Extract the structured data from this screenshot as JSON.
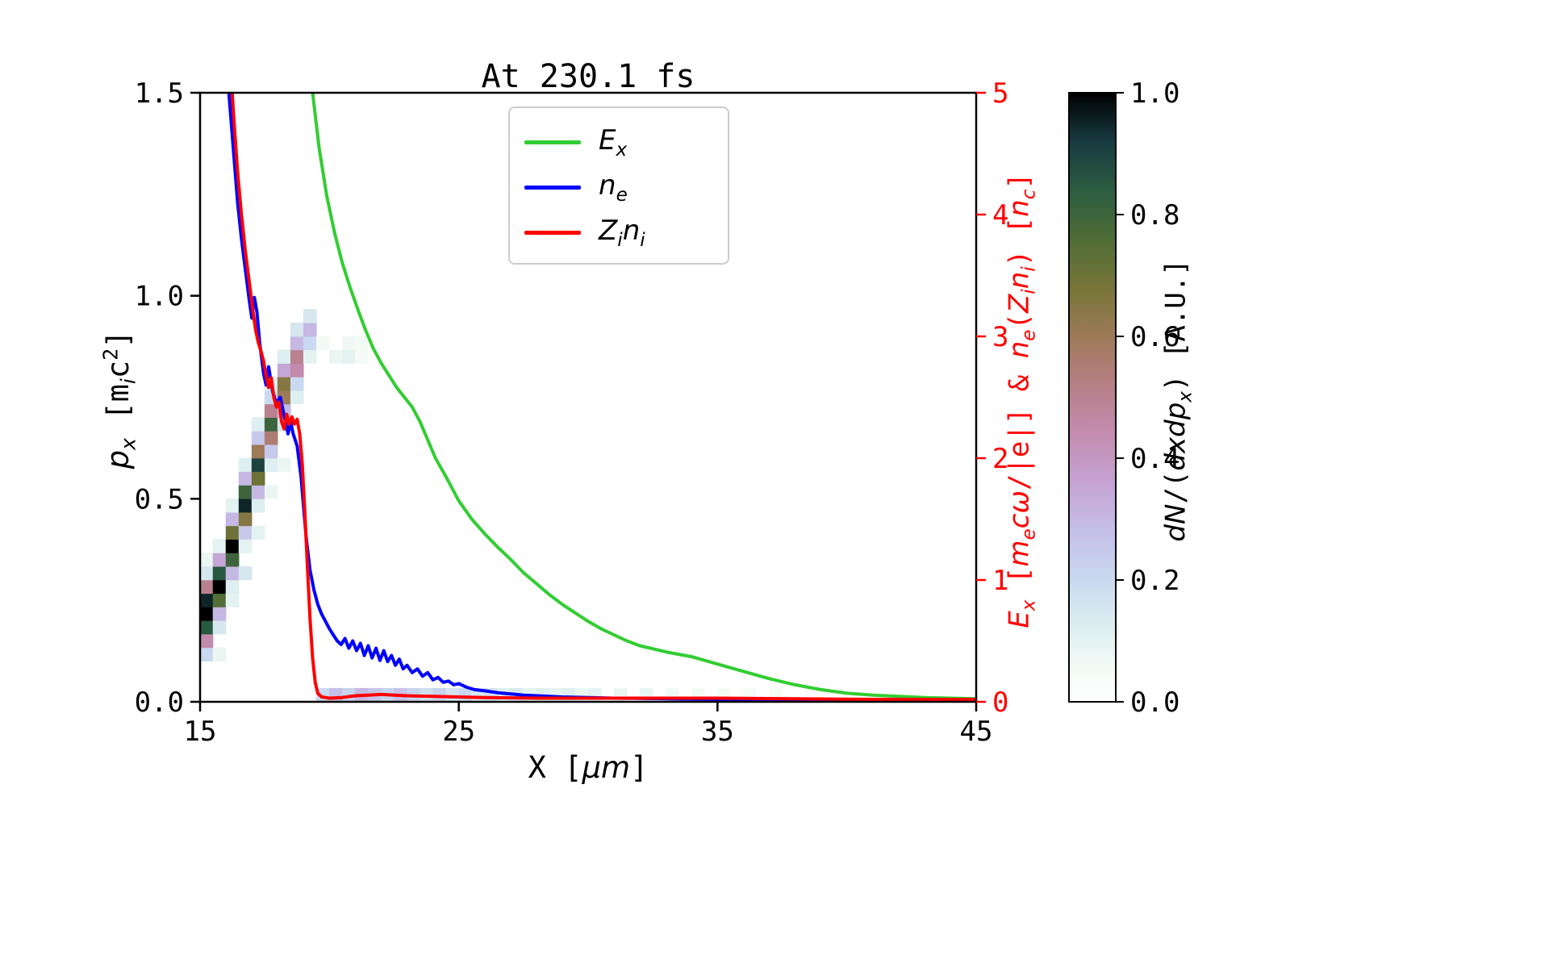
{
  "title": "At 230.1 fs",
  "chart_data": {
    "type": "line+heatmap",
    "title": "At 230.1 fs",
    "xlabel": "X [um]",
    "ylabel_left": "p_x [m_i c^2]",
    "ylabel_right": "E_x [m_e c w/|e|] & n_e(Z_i n_i) [n_c]",
    "colorbar_label": "dN/(dx dp_x) [A.U.]",
    "xlim": [
      15,
      45
    ],
    "ylim_left": [
      0,
      1.5
    ],
    "ylim_right": [
      0,
      5
    ],
    "x_ticks": [
      "15",
      "25",
      "35",
      "45"
    ],
    "y_ticks_left": [
      "0.0",
      "0.5",
      "1.0",
      "1.5"
    ],
    "y_ticks_right": [
      "0",
      "1",
      "2",
      "3",
      "4",
      "5"
    ],
    "colorbar_ticks": [
      "0.0",
      "0.2",
      "0.4",
      "0.6",
      "0.8",
      "1.0"
    ],
    "axis_color_right": "#ff0000",
    "legend_position": "upper center",
    "grid": false,
    "series": [
      {
        "name": "E_x",
        "color": "#32cd32",
        "axis": "right",
        "x": [
          19.0,
          19.35,
          19.6,
          19.9,
          20.2,
          20.5,
          20.8,
          21.1,
          21.4,
          21.7,
          22.0,
          22.3,
          22.6,
          22.9,
          23.2,
          23.5,
          23.8,
          24.1,
          24.5,
          25.0,
          25.5,
          26.0,
          26.5,
          27.0,
          27.5,
          28.0,
          28.5,
          29.0,
          29.5,
          30.0,
          30.5,
          31.0,
          31.5,
          32.0,
          33.0,
          34.0,
          35.0,
          36.0,
          37.0,
          38.0,
          39.0,
          40.0,
          41.0,
          42.0,
          43.0,
          44.0,
          45.0
        ],
        "y": [
          5.6,
          5.0,
          4.55,
          4.15,
          3.85,
          3.6,
          3.4,
          3.22,
          3.05,
          2.9,
          2.78,
          2.68,
          2.58,
          2.5,
          2.42,
          2.3,
          2.15,
          2.0,
          1.85,
          1.65,
          1.5,
          1.38,
          1.27,
          1.17,
          1.06,
          0.97,
          0.88,
          0.8,
          0.73,
          0.66,
          0.6,
          0.55,
          0.5,
          0.46,
          0.41,
          0.37,
          0.31,
          0.25,
          0.19,
          0.14,
          0.1,
          0.07,
          0.055,
          0.045,
          0.035,
          0.03,
          0.025
        ]
      },
      {
        "name": "n_e",
        "color": "#0000ff",
        "axis": "right",
        "x": [
          16.0,
          16.15,
          16.3,
          16.45,
          16.6,
          16.75,
          16.9,
          17.0,
          17.1,
          17.2,
          17.3,
          17.45,
          17.55,
          17.65,
          17.8,
          17.95,
          18.1,
          18.25,
          18.4,
          18.5,
          18.6,
          18.75,
          18.9,
          19.0,
          19.1,
          19.25,
          19.4,
          19.55,
          19.7,
          19.85,
          20.0,
          20.15,
          20.3,
          20.45,
          20.6,
          20.75,
          20.9,
          21.05,
          21.2,
          21.35,
          21.5,
          21.65,
          21.8,
          21.95,
          22.1,
          22.25,
          22.4,
          22.55,
          22.7,
          22.85,
          23.0,
          23.2,
          23.4,
          23.6,
          23.8,
          24.0,
          24.2,
          24.4,
          24.6,
          24.8,
          25.0,
          25.3,
          25.6,
          26.0,
          26.5,
          27.0,
          27.5,
          28.0,
          29.0,
          30.0,
          31.0,
          32.0,
          34.0,
          36.0,
          38.0,
          40.0,
          42.0,
          45.0
        ],
        "y": [
          5.3,
          4.9,
          4.5,
          4.1,
          3.8,
          3.55,
          3.3,
          3.15,
          3.32,
          3.2,
          2.95,
          2.7,
          2.6,
          2.75,
          2.55,
          2.45,
          2.5,
          2.35,
          2.2,
          2.3,
          2.2,
          2.1,
          1.85,
          1.6,
          1.35,
          1.08,
          0.92,
          0.8,
          0.72,
          0.66,
          0.6,
          0.55,
          0.5,
          0.47,
          0.52,
          0.44,
          0.5,
          0.42,
          0.48,
          0.38,
          0.46,
          0.36,
          0.44,
          0.34,
          0.42,
          0.33,
          0.38,
          0.3,
          0.35,
          0.27,
          0.3,
          0.24,
          0.27,
          0.21,
          0.24,
          0.18,
          0.2,
          0.16,
          0.17,
          0.14,
          0.15,
          0.12,
          0.1,
          0.09,
          0.075,
          0.065,
          0.055,
          0.05,
          0.04,
          0.035,
          0.03,
          0.028,
          0.022,
          0.018,
          0.015,
          0.012,
          0.01,
          0.008
        ]
      },
      {
        "name": "Z_i n_i",
        "color": "#ff0000",
        "axis": "right",
        "x": [
          16.15,
          16.3,
          16.45,
          16.6,
          16.75,
          16.9,
          17.05,
          17.15,
          17.25,
          17.35,
          17.45,
          17.55,
          17.65,
          17.75,
          17.85,
          17.95,
          18.05,
          18.15,
          18.25,
          18.35,
          18.45,
          18.55,
          18.65,
          18.75,
          18.85,
          18.95,
          19.05,
          19.15,
          19.25,
          19.35,
          19.45,
          19.55,
          19.7,
          19.85,
          20.0,
          20.5,
          21.0,
          21.5,
          22.0,
          22.5,
          23.0,
          24.0,
          25.0,
          26.0,
          28.0,
          30.0,
          32.0,
          35.0,
          38.0,
          41.0,
          45.0
        ],
        "y": [
          5.3,
          4.8,
          4.35,
          4.0,
          3.7,
          3.45,
          3.2,
          3.05,
          2.95,
          2.88,
          2.8,
          2.68,
          2.58,
          2.66,
          2.5,
          2.42,
          2.46,
          2.3,
          2.24,
          2.36,
          2.28,
          2.34,
          2.28,
          2.32,
          2.2,
          1.95,
          1.55,
          1.1,
          0.68,
          0.36,
          0.16,
          0.07,
          0.04,
          0.035,
          0.03,
          0.035,
          0.05,
          0.055,
          0.06,
          0.055,
          0.05,
          0.045,
          0.04,
          0.035,
          0.03,
          0.03,
          0.03,
          0.03,
          0.025,
          0.02,
          0.02
        ]
      }
    ],
    "heatmap": {
      "description": "phase-space histogram dN/(dx dpx), left axis units",
      "x0": 15,
      "dx": 0.5,
      "p0": 0.0,
      "dp": 0.033333,
      "cells": [
        [
          0,
          3,
          0.2
        ],
        [
          0,
          4,
          0.45
        ],
        [
          0,
          5,
          0.85
        ],
        [
          0,
          6,
          1.0
        ],
        [
          0,
          7,
          0.95
        ],
        [
          0,
          8,
          0.5
        ],
        [
          0,
          9,
          0.15
        ],
        [
          0,
          10,
          0.08
        ],
        [
          1,
          3,
          0.08
        ],
        [
          1,
          5,
          0.15
        ],
        [
          1,
          6,
          0.3
        ],
        [
          1,
          7,
          0.75
        ],
        [
          1,
          8,
          1.0
        ],
        [
          1,
          9,
          0.85
        ],
        [
          1,
          10,
          0.35
        ],
        [
          1,
          11,
          0.1
        ],
        [
          2,
          7,
          0.1
        ],
        [
          2,
          8,
          0.12
        ],
        [
          2,
          9,
          0.3
        ],
        [
          2,
          10,
          0.8
        ],
        [
          2,
          11,
          1.0
        ],
        [
          2,
          12,
          0.7
        ],
        [
          2,
          13,
          0.3
        ],
        [
          2,
          14,
          0.1
        ],
        [
          3,
          9,
          0.15
        ],
        [
          3,
          11,
          0.1
        ],
        [
          3,
          12,
          0.25
        ],
        [
          3,
          13,
          0.65
        ],
        [
          3,
          14,
          0.95
        ],
        [
          3,
          15,
          0.8
        ],
        [
          3,
          16,
          0.3
        ],
        [
          3,
          17,
          0.12
        ],
        [
          4,
          12,
          0.1
        ],
        [
          4,
          14,
          0.12
        ],
        [
          4,
          15,
          0.3
        ],
        [
          4,
          16,
          0.7
        ],
        [
          4,
          17,
          0.9
        ],
        [
          4,
          18,
          0.6
        ],
        [
          4,
          19,
          0.25
        ],
        [
          4,
          20,
          0.12
        ],
        [
          5,
          15,
          0.08
        ],
        [
          5,
          17,
          0.12
        ],
        [
          5,
          18,
          0.25
        ],
        [
          5,
          19,
          0.55
        ],
        [
          5,
          20,
          0.8
        ],
        [
          5,
          21,
          0.5
        ],
        [
          5,
          22,
          0.2
        ],
        [
          5,
          23,
          0.12
        ],
        [
          6,
          17,
          0.08
        ],
        [
          6,
          20,
          0.15
        ],
        [
          6,
          21,
          0.3
        ],
        [
          6,
          22,
          0.6
        ],
        [
          6,
          23,
          0.65
        ],
        [
          6,
          24,
          0.35
        ],
        [
          6,
          25,
          0.12
        ],
        [
          7,
          22,
          0.12
        ],
        [
          7,
          23,
          0.2
        ],
        [
          7,
          24,
          0.45
        ],
        [
          7,
          25,
          0.5
        ],
        [
          7,
          26,
          0.3
        ],
        [
          7,
          27,
          0.15
        ],
        [
          8,
          25,
          0.1
        ],
        [
          8,
          26,
          0.2
        ],
        [
          8,
          27,
          0.3
        ],
        [
          8,
          28,
          0.15
        ],
        [
          9,
          26,
          0.06
        ],
        [
          10,
          25,
          0.08
        ],
        [
          11,
          25,
          0.1
        ],
        [
          11,
          26,
          0.07
        ],
        [
          12,
          25,
          0.05
        ],
        [
          12,
          26,
          0.06
        ],
        [
          9,
          0,
          0.2
        ],
        [
          10,
          0,
          0.28
        ],
        [
          11,
          0,
          0.22
        ],
        [
          12,
          0,
          0.3
        ],
        [
          13,
          0,
          0.26
        ],
        [
          14,
          0,
          0.22
        ],
        [
          15,
          0,
          0.27
        ],
        [
          16,
          0,
          0.22
        ],
        [
          17,
          0,
          0.18
        ],
        [
          18,
          0,
          0.22
        ],
        [
          19,
          0,
          0.16
        ],
        [
          20,
          0,
          0.2
        ],
        [
          21,
          0,
          0.14
        ],
        [
          22,
          0,
          0.17
        ],
        [
          23,
          0,
          0.12
        ],
        [
          24,
          0,
          0.14
        ],
        [
          25,
          0,
          0.1
        ],
        [
          26,
          0,
          0.12
        ],
        [
          27,
          0,
          0.1
        ],
        [
          28,
          0,
          0.12
        ],
        [
          29,
          0,
          0.08
        ],
        [
          30,
          0,
          0.1
        ],
        [
          32,
          0,
          0.08
        ],
        [
          34,
          0,
          0.09
        ],
        [
          36,
          0,
          0.06
        ],
        [
          38,
          0,
          0.05
        ],
        [
          40,
          0,
          0.05
        ],
        [
          42,
          0,
          0.04
        ],
        [
          44,
          0,
          0.04
        ]
      ]
    },
    "colormap_stops": [
      [
        0.0,
        "#ffffff"
      ],
      [
        0.06,
        "#f2faf5"
      ],
      [
        0.12,
        "#ddeff0"
      ],
      [
        0.2,
        "#c9d9ef"
      ],
      [
        0.28,
        "#c5bfe8"
      ],
      [
        0.36,
        "#c5a3d2"
      ],
      [
        0.44,
        "#c48cb0"
      ],
      [
        0.52,
        "#b77f85"
      ],
      [
        0.6,
        "#9d7a58"
      ],
      [
        0.68,
        "#777538"
      ],
      [
        0.76,
        "#4e6d36"
      ],
      [
        0.84,
        "#2c5c41"
      ],
      [
        0.92,
        "#173a40"
      ],
      [
        1.0,
        "#000000"
      ]
    ]
  },
  "labels": {
    "x": {
      "segments": [
        {
          "t": "X [",
          "mono": true
        },
        {
          "t": "μm",
          "it": true
        },
        {
          "t": "]",
          "mono": true
        }
      ]
    },
    "yleft": {
      "segments": [
        {
          "t": "p",
          "it": true
        },
        {
          "t": "x",
          "it": true,
          "sub": true
        },
        {
          "t": " [",
          "mono": true
        },
        {
          "t": "m",
          "mono": true
        },
        {
          "t": "i",
          "it": true,
          "sub": true
        },
        {
          "t": "c",
          "mono": true
        },
        {
          "t": "2",
          "mono": true,
          "sup": true
        },
        {
          "t": "]",
          "mono": true
        }
      ]
    },
    "yright": {
      "segments": [
        {
          "t": "E",
          "it": true
        },
        {
          "t": "x",
          "it": true,
          "sub": true
        },
        {
          "t": " [",
          "mono": true
        },
        {
          "t": "m",
          "it": true
        },
        {
          "t": "e",
          "it": true,
          "sub": true
        },
        {
          "t": "c",
          "it": true
        },
        {
          "t": "ω",
          "it": true
        },
        {
          "t": "/|e|]",
          "mono": true
        },
        {
          "t": " & ",
          "mono": true
        },
        {
          "t": "n",
          "it": true
        },
        {
          "t": "e",
          "it": true,
          "sub": true
        },
        {
          "t": "(",
          "mono": true
        },
        {
          "t": "Z",
          "it": true
        },
        {
          "t": "i",
          "it": true,
          "sub": true
        },
        {
          "t": "n",
          "it": true
        },
        {
          "t": "i",
          "it": true,
          "sub": true
        },
        {
          "t": ")",
          "mono": true
        },
        {
          "t": " [",
          "mono": true
        },
        {
          "t": "n",
          "it": true
        },
        {
          "t": "c",
          "it": true,
          "sub": true
        },
        {
          "t": "]",
          "mono": true
        }
      ]
    },
    "colorbar": {
      "segments": [
        {
          "t": "d",
          "it": true
        },
        {
          "t": "N",
          "it": true
        },
        {
          "t": "/(",
          "mono": true
        },
        {
          "t": "d",
          "it": true
        },
        {
          "t": "x",
          "it": true
        },
        {
          "t": "d",
          "it": true
        },
        {
          "t": "p",
          "it": true
        },
        {
          "t": "x",
          "it": true,
          "sub": true
        },
        {
          "t": ")",
          "mono": true
        },
        {
          "t": " [A.U.]",
          "mono": true
        }
      ]
    }
  },
  "legend": {
    "items": [
      {
        "color": "#32cd32",
        "segments": [
          {
            "t": "E",
            "it": true
          },
          {
            "t": "x",
            "it": true,
            "sub": true
          }
        ]
      },
      {
        "color": "#0000ff",
        "segments": [
          {
            "t": "n",
            "it": true
          },
          {
            "t": "e",
            "it": true,
            "sub": true
          }
        ]
      },
      {
        "color": "#ff0000",
        "segments": [
          {
            "t": "Z",
            "it": true
          },
          {
            "t": "i",
            "it": true,
            "sub": true
          },
          {
            "t": "n",
            "it": true
          },
          {
            "t": "i",
            "it": true,
            "sub": true
          }
        ]
      }
    ]
  }
}
